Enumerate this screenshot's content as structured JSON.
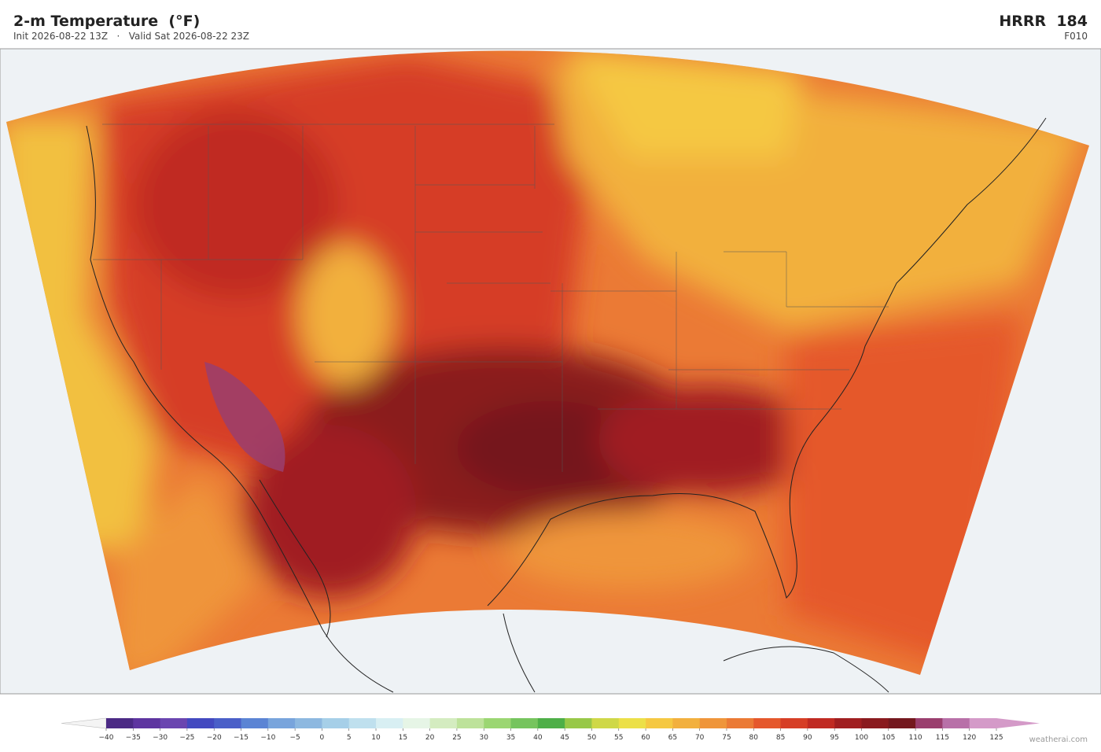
{
  "header": {
    "title": "2-m Temperature  (°F)",
    "subtitle": "Init 2026-08-22 13Z   ·   Valid Sat 2026-08-22 23Z",
    "model": "HRRR  184",
    "forecast_hour": "F010"
  },
  "colorbar": {
    "ticks": [
      {
        "value": -40,
        "label": "−40"
      },
      {
        "value": -35,
        "label": "−35"
      },
      {
        "value": -30,
        "label": "−30"
      },
      {
        "value": -25,
        "label": "−25"
      },
      {
        "value": -20,
        "label": "−20"
      },
      {
        "value": -15,
        "label": "−15"
      },
      {
        "value": -10,
        "label": "−10"
      },
      {
        "value": -5,
        "label": "−5"
      },
      0,
      5,
      10,
      15,
      20,
      25,
      30,
      35,
      40,
      45,
      50,
      55,
      60,
      65,
      70,
      75,
      80,
      85,
      90,
      95,
      100,
      105,
      110,
      115,
      120,
      125
    ],
    "colors": [
      "#4b2a85",
      "#5e35a0",
      "#6a45b0",
      "#4349c0",
      "#4a5fc8",
      "#5b84d4",
      "#78a4dc",
      "#8db8e0",
      "#a6cfe8",
      "#bfe0ee",
      "#d8eff3",
      "#e6f5e6",
      "#d4ecc0",
      "#bde29a",
      "#9bd672",
      "#76c45e",
      "#4eaf48",
      "#98c848",
      "#cfd848",
      "#ece048",
      "#f5c842",
      "#f2b03e",
      "#ef953a",
      "#eb7a35",
      "#e5582c",
      "#d63e26",
      "#c02a22",
      "#a01e20",
      "#8a1a1e",
      "#74181e",
      "#9a3e6e",
      "#b870a8",
      "#d49ac8"
    ],
    "under_color": "#f4f4f4",
    "over_color": "#d49ac8"
  },
  "credit": "weatherai.com"
}
